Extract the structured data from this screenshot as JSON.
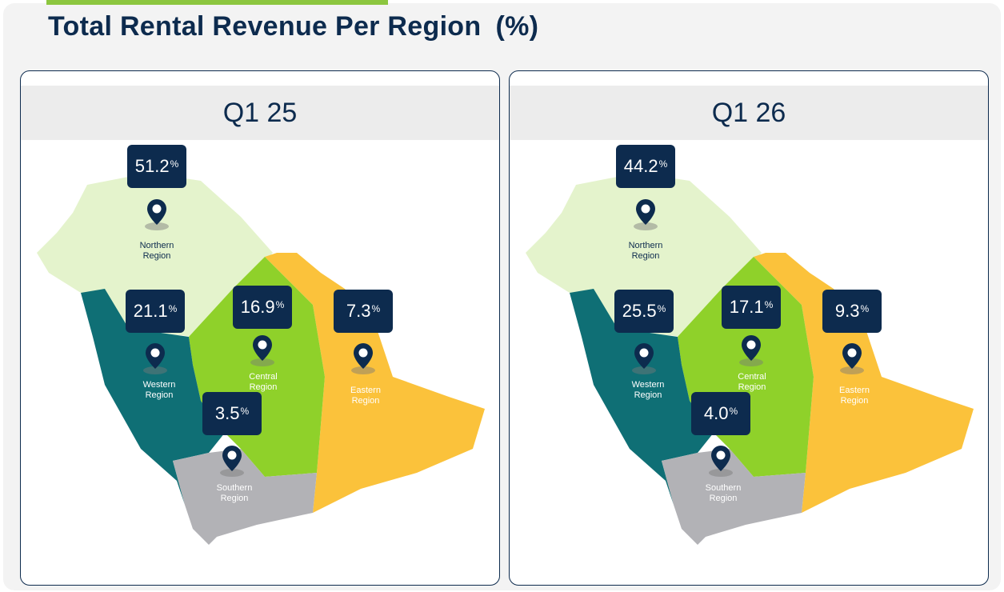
{
  "title": "Total Rental Revenue Per Region",
  "title_unit": "(%)",
  "panels": [
    {
      "period": "Q1 25",
      "regions": [
        {
          "name": "Northern Region",
          "value": "51.2",
          "unit": "%"
        },
        {
          "name": "Western Region",
          "value": "21.1",
          "unit": "%"
        },
        {
          "name": "Central Region",
          "value": "16.9",
          "unit": "%"
        },
        {
          "name": "Eastern Region",
          "value": "7.3",
          "unit": "%"
        },
        {
          "name": "Southern Region",
          "value": "3.5",
          "unit": "%"
        }
      ]
    },
    {
      "period": "Q1 26",
      "regions": [
        {
          "name": "Northern Region",
          "value": "44.2",
          "unit": "%"
        },
        {
          "name": "Western Region",
          "value": "25.5",
          "unit": "%"
        },
        {
          "name": "Central Region",
          "value": "17.1",
          "unit": "%"
        },
        {
          "name": "Eastern Region",
          "value": "9.3",
          "unit": "%"
        },
        {
          "name": "Southern Region",
          "value": "4.0",
          "unit": "%"
        }
      ]
    }
  ]
}
